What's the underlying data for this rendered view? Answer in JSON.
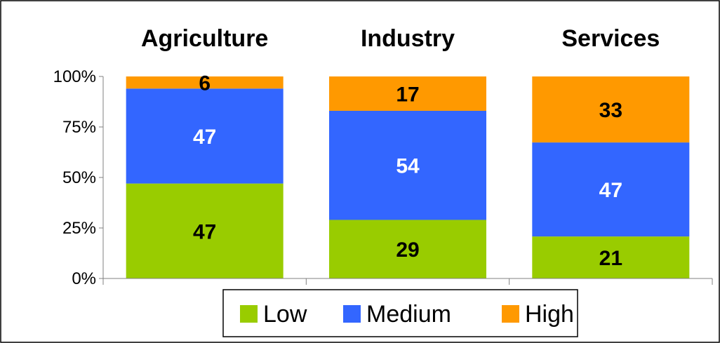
{
  "chart_data": {
    "type": "bar",
    "stacked": true,
    "percent_stacked": true,
    "categories": [
      "Agriculture",
      "Industry",
      "Services"
    ],
    "series": [
      {
        "name": "Low",
        "values": [
          47,
          29,
          21
        ],
        "color": "#99CC00",
        "label_color": "#000000"
      },
      {
        "name": "Medium",
        "values": [
          47,
          54,
          47
        ],
        "color": "#3366FF",
        "label_color": "#FFFFFF"
      },
      {
        "name": "High",
        "values": [
          6,
          17,
          33
        ],
        "color": "#FF9900",
        "label_color": "#000000"
      }
    ],
    "yticks": [
      "0%",
      "25%",
      "50%",
      "75%",
      "100%"
    ],
    "ylim": [
      0,
      100
    ],
    "category_titles_position": "top",
    "legend_position": "bottom",
    "grid": false
  }
}
